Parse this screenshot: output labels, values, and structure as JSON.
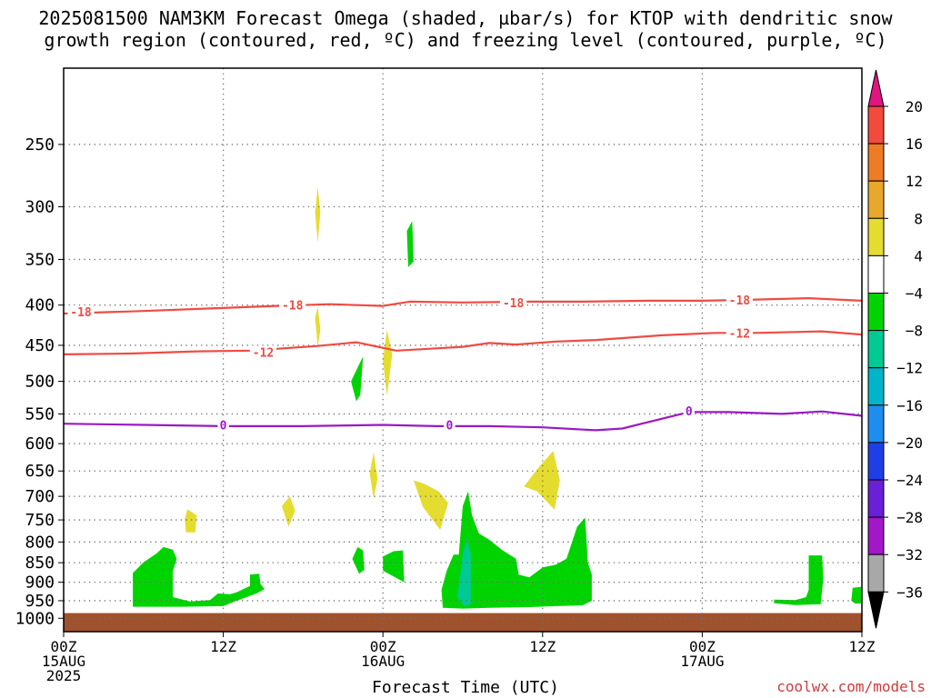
{
  "title": {
    "line1": "2025081500 NAM3KM Forecast Omega (shaded, µbar/s) for KTOP with dendritic snow",
    "line2": "growth region (contoured, red, ºC) and freezing level (contoured, purple, ºC)"
  },
  "footer": {
    "xlabel": "Forecast Time (UTC)",
    "credit": "coolwx.com/models"
  },
  "colors": {
    "dgz": "#ef4b43",
    "freezing": "#9b19c3",
    "ground": "#a0522d",
    "green": "#00d400",
    "teal": "#00c994",
    "yellow": "#e5dc30",
    "grid": "#777777"
  },
  "chart_data": {
    "type": "time-height cross section",
    "x_axis": {
      "label": "Forecast Time (UTC)",
      "range_hours": [
        0,
        60
      ],
      "ticks": [
        {
          "hour": 0,
          "lines": [
            "00Z",
            "15AUG",
            "2025"
          ]
        },
        {
          "hour": 12,
          "lines": [
            "12Z"
          ]
        },
        {
          "hour": 24,
          "lines": [
            "00Z",
            "16AUG"
          ]
        },
        {
          "hour": 36,
          "lines": [
            "12Z"
          ]
        },
        {
          "hour": 48,
          "lines": [
            "00Z",
            "17AUG"
          ]
        },
        {
          "hour": 60,
          "lines": [
            "12Z"
          ]
        }
      ]
    },
    "y_axis": {
      "unit": "hPa",
      "scale": "log-pressure",
      "range": [
        1040,
        200
      ],
      "ticks": [
        250,
        300,
        350,
        400,
        450,
        500,
        550,
        600,
        650,
        700,
        750,
        800,
        850,
        900,
        950,
        1000
      ]
    },
    "grid": true,
    "ground_level_hPa": 985,
    "contours": [
      {
        "kind": "dgz",
        "level": -18,
        "color": "#ef4b43",
        "labels": [
          {
            "t": 1.3,
            "p": 408,
            "text": "-18"
          },
          {
            "t": 17.2,
            "p": 400,
            "text": "-18"
          },
          {
            "t": 33.8,
            "p": 397,
            "text": "-18"
          },
          {
            "t": 50.8,
            "p": 394,
            "text": "-18"
          }
        ],
        "points": [
          [
            0,
            410
          ],
          [
            6,
            407
          ],
          [
            11,
            404
          ],
          [
            16,
            401
          ],
          [
            20,
            399
          ],
          [
            24,
            401
          ],
          [
            26,
            396
          ],
          [
            30,
            397
          ],
          [
            35,
            396
          ],
          [
            39,
            396
          ],
          [
            44,
            395
          ],
          [
            48,
            395
          ],
          [
            51,
            394
          ],
          [
            56,
            392
          ],
          [
            60,
            395
          ]
        ]
      },
      {
        "kind": "dgz",
        "level": -12,
        "color": "#ef4b43",
        "labels": [
          {
            "t": 15.0,
            "p": 459,
            "text": "-12"
          },
          {
            "t": 50.8,
            "p": 434,
            "text": "-12"
          }
        ],
        "points": [
          [
            0,
            462
          ],
          [
            5,
            461
          ],
          [
            10,
            458
          ],
          [
            14,
            457
          ],
          [
            19,
            451
          ],
          [
            22,
            446
          ],
          [
            25,
            457
          ],
          [
            28,
            454
          ],
          [
            30,
            452
          ],
          [
            32,
            447
          ],
          [
            34,
            449
          ],
          [
            37,
            445
          ],
          [
            40,
            443
          ],
          [
            45,
            437
          ],
          [
            49,
            434
          ],
          [
            52,
            434
          ],
          [
            57,
            432
          ],
          [
            60,
            436
          ]
        ]
      },
      {
        "kind": "freezing",
        "level": 0,
        "color": "#9b19c3",
        "labels": [
          {
            "t": 12.0,
            "p": 568,
            "text": "0"
          },
          {
            "t": 29.0,
            "p": 568,
            "text": "0"
          },
          {
            "t": 47.0,
            "p": 545,
            "text": "0"
          }
        ],
        "points": [
          [
            0,
            566
          ],
          [
            6,
            568
          ],
          [
            12,
            570
          ],
          [
            18,
            570
          ],
          [
            24,
            568
          ],
          [
            28,
            570
          ],
          [
            32,
            570
          ],
          [
            36,
            572
          ],
          [
            40,
            577
          ],
          [
            42,
            574
          ],
          [
            44,
            563
          ],
          [
            47,
            547
          ],
          [
            50,
            547
          ],
          [
            54,
            550
          ],
          [
            57,
            546
          ],
          [
            60,
            553
          ]
        ]
      }
    ],
    "omega_regions": [
      {
        "value_range": [
          -8,
          -4
        ],
        "color": "#00d400",
        "points": [
          [
            5.2,
            967
          ],
          [
            5.2,
            876
          ],
          [
            6.0,
            849
          ],
          [
            7.0,
            827
          ],
          [
            7.5,
            812
          ],
          [
            8.2,
            818
          ],
          [
            8.5,
            840
          ],
          [
            8.2,
            872
          ],
          [
            8.2,
            940
          ],
          [
            9.5,
            952
          ],
          [
            11.0,
            948
          ],
          [
            11.6,
            930
          ],
          [
            12.5,
            932
          ],
          [
            13.0,
            927
          ],
          [
            14.0,
            910
          ],
          [
            14.0,
            880
          ],
          [
            14.7,
            878
          ],
          [
            14.8,
            905
          ],
          [
            15.1,
            918
          ],
          [
            14.5,
            930
          ],
          [
            13.0,
            950
          ],
          [
            12.0,
            965
          ],
          [
            9.0,
            967
          ]
        ]
      },
      {
        "value_range": [
          -8,
          -4
        ],
        "color": "#00d400",
        "points": [
          [
            21.7,
            840
          ],
          [
            22.1,
            812
          ],
          [
            22.5,
            820
          ],
          [
            22.6,
            868
          ],
          [
            22.2,
            878
          ]
        ]
      },
      {
        "value_range": [
          -8,
          -4
        ],
        "color": "#00d400",
        "points": [
          [
            24.0,
            835
          ],
          [
            24.8,
            822
          ],
          [
            25.5,
            820
          ],
          [
            25.6,
            900
          ],
          [
            24.8,
            885
          ],
          [
            24.0,
            870
          ]
        ]
      },
      {
        "value_range": [
          -8,
          -4
        ],
        "color": "#00d400",
        "points": [
          [
            21.6,
            500
          ],
          [
            22.1,
            480
          ],
          [
            22.5,
            465
          ],
          [
            22.3,
            520
          ],
          [
            22.0,
            530
          ]
        ]
      },
      {
        "value_range": [
          -8,
          -4
        ],
        "color": "#00d400",
        "points": [
          [
            25.8,
            322
          ],
          [
            26.2,
            313
          ],
          [
            26.3,
            352
          ],
          [
            25.9,
            358
          ]
        ]
      },
      {
        "value_range": [
          -8,
          -4
        ],
        "color": "#00d400",
        "points": [
          [
            28.5,
            970
          ],
          [
            28.4,
            920
          ],
          [
            28.8,
            870
          ],
          [
            29.3,
            830
          ],
          [
            29.7,
            830
          ],
          [
            30.0,
            720
          ],
          [
            30.4,
            690
          ],
          [
            30.7,
            740
          ],
          [
            31.2,
            780
          ],
          [
            32.0,
            795
          ],
          [
            33.0,
            820
          ],
          [
            34.0,
            840
          ],
          [
            34.2,
            880
          ],
          [
            35.0,
            887
          ],
          [
            36.0,
            862
          ],
          [
            37.0,
            855
          ],
          [
            37.8,
            840
          ],
          [
            38.6,
            765
          ],
          [
            39.2,
            745
          ],
          [
            39.4,
            850
          ],
          [
            39.7,
            880
          ],
          [
            39.7,
            950
          ],
          [
            39.0,
            963
          ],
          [
            37.0,
            965
          ],
          [
            35.0,
            968
          ],
          [
            32.0,
            970
          ],
          [
            30.0,
            972
          ]
        ]
      },
      {
        "value_range": [
          -8,
          -4
        ],
        "color": "#00d400",
        "points": [
          [
            53.4,
            957
          ],
          [
            53.4,
            947
          ],
          [
            55.0,
            948
          ],
          [
            55.8,
            940
          ],
          [
            56.0,
            920
          ],
          [
            56.0,
            832
          ],
          [
            57.0,
            832
          ],
          [
            57.1,
            890
          ],
          [
            56.9,
            960
          ],
          [
            55.0,
            962
          ]
        ]
      },
      {
        "value_range": [
          -8,
          -4
        ],
        "color": "#00d400",
        "points": [
          [
            59.2,
            950
          ],
          [
            59.3,
            915
          ],
          [
            60.0,
            912
          ],
          [
            60.0,
            958
          ],
          [
            59.5,
            958
          ]
        ]
      },
      {
        "value_range": [
          -12,
          -8
        ],
        "color": "#00c994",
        "points": [
          [
            29.6,
            940
          ],
          [
            30.0,
            830
          ],
          [
            30.3,
            790
          ],
          [
            30.6,
            830
          ],
          [
            30.6,
            960
          ],
          [
            30.1,
            966
          ]
        ]
      },
      {
        "value_range": [
          4,
          8
        ],
        "color": "#e5dc30",
        "points": [
          [
            18.9,
            305
          ],
          [
            19.1,
            283
          ],
          [
            19.3,
            305
          ],
          [
            19.1,
            333
          ]
        ]
      },
      {
        "value_range": [
          4,
          8
        ],
        "color": "#e5dc30",
        "points": [
          [
            18.9,
            415
          ],
          [
            19.1,
            402
          ],
          [
            19.3,
            430
          ],
          [
            19.1,
            452
          ]
        ]
      },
      {
        "value_range": [
          4,
          8
        ],
        "color": "#e5dc30",
        "points": [
          [
            24.0,
            470
          ],
          [
            24.3,
            430
          ],
          [
            24.7,
            462
          ],
          [
            24.3,
            522
          ]
        ]
      },
      {
        "value_range": [
          4,
          8
        ],
        "color": "#e5dc30",
        "points": [
          [
            23.0,
            655
          ],
          [
            23.3,
            615
          ],
          [
            23.6,
            665
          ],
          [
            23.3,
            705
          ]
        ]
      },
      {
        "value_range": [
          4,
          8
        ],
        "color": "#e5dc30",
        "points": [
          [
            9.1,
            748
          ],
          [
            9.3,
            727
          ],
          [
            10.0,
            740
          ],
          [
            9.9,
            778
          ],
          [
            9.2,
            778
          ]
        ]
      },
      {
        "value_range": [
          4,
          8
        ],
        "color": "#e5dc30",
        "points": [
          [
            16.4,
            720
          ],
          [
            17.0,
            700
          ],
          [
            17.4,
            730
          ],
          [
            16.9,
            765
          ]
        ]
      },
      {
        "value_range": [
          4,
          8
        ],
        "color": "#e5dc30",
        "points": [
          [
            26.3,
            668
          ],
          [
            27.1,
            675
          ],
          [
            28.2,
            690
          ],
          [
            28.9,
            714
          ],
          [
            28.6,
            742
          ],
          [
            28.3,
            772
          ],
          [
            27.0,
            722
          ]
        ]
      },
      {
        "value_range": [
          4,
          8
        ],
        "color": "#e5dc30",
        "points": [
          [
            34.6,
            680
          ],
          [
            35.8,
            640
          ],
          [
            36.8,
            613
          ],
          [
            37.3,
            668
          ],
          [
            36.9,
            728
          ],
          [
            35.6,
            690
          ]
        ]
      }
    ],
    "colorbar": {
      "unit": "µbar/s",
      "labels": [
        "20",
        "16",
        "12",
        "8",
        "4",
        "−4",
        "−8",
        "−12",
        "−16",
        "−20",
        "−24",
        "−28",
        "−32",
        "−36"
      ],
      "bins": [
        {
          "from": 16,
          "to": 20,
          "color": "#f24a3d"
        },
        {
          "from": 12,
          "to": 16,
          "color": "#ee7b25"
        },
        {
          "from": 8,
          "to": 12,
          "color": "#e8a82c"
        },
        {
          "from": 4,
          "to": 8,
          "color": "#e5dc30"
        },
        {
          "from": -4,
          "to": 4,
          "color": "#ffffff"
        },
        {
          "from": -8,
          "to": -4,
          "color": "#00d400"
        },
        {
          "from": -12,
          "to": -8,
          "color": "#00c994"
        },
        {
          "from": -16,
          "to": -12,
          "color": "#00b5c9"
        },
        {
          "from": -20,
          "to": -16,
          "color": "#1d8ef0"
        },
        {
          "from": -24,
          "to": -20,
          "color": "#1f3fe6"
        },
        {
          "from": -28,
          "to": -24,
          "color": "#6a20d6"
        },
        {
          "from": -32,
          "to": -28,
          "color": "#a317c8"
        },
        {
          "from": -36,
          "to": -32,
          "color": "#a8a8a8"
        }
      ],
      "top_overflow_color": "#e0157e",
      "bottom_overflow_color": "#000000"
    }
  }
}
